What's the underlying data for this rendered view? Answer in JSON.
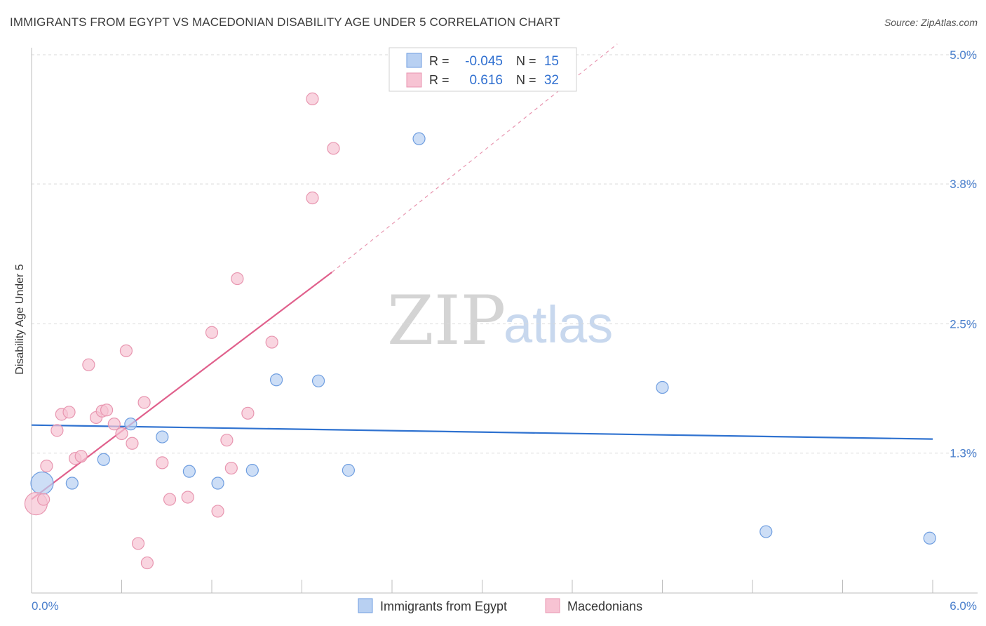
{
  "title": "IMMIGRANTS FROM EGYPT VS MACEDONIAN DISABILITY AGE UNDER 5 CORRELATION CHART",
  "source": "Source: ZipAtlas.com",
  "watermark": {
    "zip": "ZIP",
    "atlas": "atlas"
  },
  "colors": {
    "blue_fill": "#b8d0f2",
    "blue_stroke": "#6f9ee0",
    "blue_line": "#2f72d0",
    "pink_fill": "#f7c3d3",
    "pink_stroke": "#e896b0",
    "pink_line": "#e0608c",
    "grid": "#d9d9d9",
    "tick_text": "#4a7fcc"
  },
  "legend": {
    "rows": [
      {
        "r_label": "R =",
        "r_value": "-0.045",
        "n_label": "N =",
        "n_value": "15"
      },
      {
        "r_label": "R =",
        "r_value": "0.616",
        "n_label": "N =",
        "n_value": "32"
      }
    ]
  },
  "chart_data": {
    "type": "scatter",
    "title": "IMMIGRANTS FROM EGYPT VS MACEDONIAN DISABILITY AGE UNDER 5 CORRELATION CHART",
    "xlabel": "",
    "ylabel": "Disability Age Under 5",
    "xlim": [
      0,
      6.0
    ],
    "ylim": [
      0,
      5.0
    ],
    "x_tick_labels": [
      "0.0%",
      "6.0%"
    ],
    "y_ticks": [
      1.3,
      2.5,
      3.8,
      5.0
    ],
    "y_tick_labels": [
      "1.3%",
      "2.5%",
      "3.8%",
      "5.0%"
    ],
    "series": [
      {
        "name": "Immigrants from Egypt",
        "color": "blue",
        "R": -0.045,
        "N": 15,
        "points": [
          {
            "x": 0.07,
            "y": 1.02,
            "big": true
          },
          {
            "x": 0.27,
            "y": 1.02
          },
          {
            "x": 0.48,
            "y": 1.24
          },
          {
            "x": 0.66,
            "y": 1.57
          },
          {
            "x": 0.87,
            "y": 1.45
          },
          {
            "x": 1.05,
            "y": 1.13
          },
          {
            "x": 1.24,
            "y": 1.02
          },
          {
            "x": 1.47,
            "y": 1.14
          },
          {
            "x": 1.63,
            "y": 1.98
          },
          {
            "x": 1.91,
            "y": 1.97
          },
          {
            "x": 2.11,
            "y": 1.14
          },
          {
            "x": 2.58,
            "y": 4.22
          },
          {
            "x": 4.2,
            "y": 1.91
          },
          {
            "x": 4.89,
            "y": 0.57
          },
          {
            "x": 5.98,
            "y": 0.51
          }
        ],
        "trend": {
          "x0": 0.0,
          "y0": 1.56,
          "x1": 6.0,
          "y1": 1.43
        }
      },
      {
        "name": "Macedonians",
        "color": "pink",
        "R": 0.616,
        "N": 32,
        "points": [
          {
            "x": 0.03,
            "y": 0.83,
            "big": true
          },
          {
            "x": 0.08,
            "y": 0.87
          },
          {
            "x": 0.1,
            "y": 1.18
          },
          {
            "x": 0.17,
            "y": 1.51
          },
          {
            "x": 0.2,
            "y": 1.66
          },
          {
            "x": 0.25,
            "y": 1.68
          },
          {
            "x": 0.29,
            "y": 1.25
          },
          {
            "x": 0.33,
            "y": 1.27
          },
          {
            "x": 0.38,
            "y": 2.12
          },
          {
            "x": 0.43,
            "y": 1.63
          },
          {
            "x": 0.47,
            "y": 1.69
          },
          {
            "x": 0.5,
            "y": 1.7
          },
          {
            "x": 0.55,
            "y": 1.57
          },
          {
            "x": 0.6,
            "y": 1.48
          },
          {
            "x": 0.63,
            "y": 2.25
          },
          {
            "x": 0.67,
            "y": 1.39
          },
          {
            "x": 0.71,
            "y": 0.46
          },
          {
            "x": 0.75,
            "y": 1.77
          },
          {
            "x": 0.77,
            "y": 0.28
          },
          {
            "x": 0.87,
            "y": 1.21
          },
          {
            "x": 0.92,
            "y": 0.87
          },
          {
            "x": 1.04,
            "y": 0.89
          },
          {
            "x": 1.2,
            "y": 2.42
          },
          {
            "x": 1.24,
            "y": 0.76
          },
          {
            "x": 1.3,
            "y": 1.42
          },
          {
            "x": 1.33,
            "y": 1.16
          },
          {
            "x": 1.37,
            "y": 2.92
          },
          {
            "x": 1.44,
            "y": 1.67
          },
          {
            "x": 1.6,
            "y": 2.33
          },
          {
            "x": 1.87,
            "y": 4.59
          },
          {
            "x": 1.87,
            "y": 3.67
          },
          {
            "x": 2.01,
            "y": 4.13
          }
        ],
        "trend": {
          "x0": 0.0,
          "y0": 0.87,
          "x1": 2.0,
          "y1": 2.98
        },
        "trend_extension": {
          "x0": 2.0,
          "y0": 2.98,
          "x1": 3.9,
          "y1": 5.1
        }
      }
    ]
  }
}
